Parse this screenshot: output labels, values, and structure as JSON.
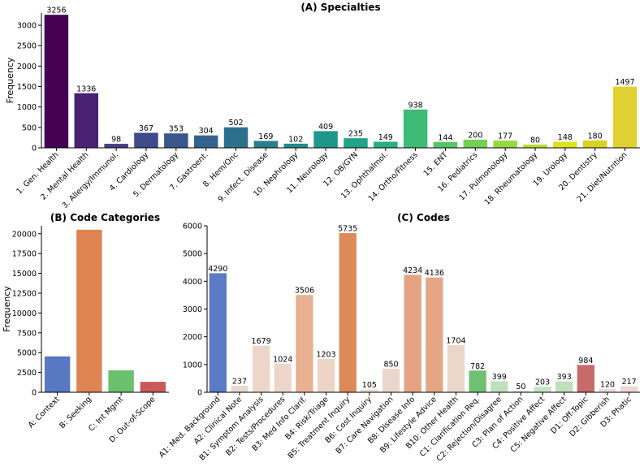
{
  "chart_data": [
    {
      "id": "A",
      "type": "bar",
      "title": "(A) Specialties",
      "xlabel": "",
      "ylabel": "Frequency",
      "ylim": [
        0,
        3300
      ],
      "yticks": [
        0,
        500,
        1000,
        1500,
        2000,
        2500,
        3000
      ],
      "categories": [
        "1. Gen. Health",
        "2. Mental Health",
        "3. Allergy/Immunol.",
        "4. Cardiology",
        "5. Dermatology",
        "7. Gastroent.",
        "8. Hem/Onc",
        "9. Infect. Disease",
        "10. Nephrology",
        "11. Neurology",
        "12. OB/GYN",
        "13. Ophthalmol.",
        "14. Ortho/Fitness",
        "15. ENT",
        "16. Pediatrics",
        "17. Pulmonology",
        "18. Rheumatology",
        "19. Urology",
        "20. Dentistry",
        "21. Diet/Nutrition"
      ],
      "values": [
        3256,
        1336,
        98,
        367,
        353,
        304,
        502,
        169,
        102,
        409,
        235,
        149,
        938,
        144,
        200,
        177,
        80,
        148,
        180,
        1497
      ],
      "labels": [
        "3256",
        "1336",
        "98",
        "367",
        "353",
        "304",
        "502",
        "169",
        "102",
        "409",
        "235",
        "149",
        "938",
        "144",
        "200",
        "177",
        "80",
        "148",
        "180",
        "1497"
      ],
      "colors": [
        "#440154",
        "#482173",
        "#433e85",
        "#3e4a89",
        "#38588c",
        "#33638d",
        "#2d708e",
        "#287d8e",
        "#238a8d",
        "#1f968b",
        "#20a386",
        "#29af7f",
        "#3cbb75",
        "#55c667",
        "#73d055",
        "#95d840",
        "#b8de29",
        "#dce319",
        "#d8d21f",
        "#e0d132"
      ]
    },
    {
      "id": "B",
      "type": "bar",
      "title": "(B) Code Categories",
      "xlabel": "",
      "ylabel": "Frequency",
      "ylim": [
        0,
        21000
      ],
      "yticks": [
        0,
        2500,
        5000,
        7500,
        10000,
        12500,
        15000,
        17500,
        20000
      ],
      "categories": [
        "A: Context",
        "B: Seeking",
        "C: Int Mgmt",
        "D: Out-of-Scope"
      ],
      "values": [
        4527,
        20500,
        2770,
        1320
      ],
      "colors": [
        "#5878c4",
        "#dd8452",
        "#6cbf6c",
        "#c85a5a"
      ]
    },
    {
      "id": "C",
      "type": "bar",
      "title": "(C) Codes",
      "xlabel": "",
      "ylabel": "",
      "ylim": [
        0,
        6000
      ],
      "yticks": [
        0,
        1000,
        2000,
        3000,
        4000,
        5000,
        6000
      ],
      "categories": [
        "A1: Med. Background",
        "A2: Clinical Note",
        "B1: Symptom Analysis",
        "B2: Tests/Procedures",
        "B3: Med Info Clarif.",
        "B4: Risk/Triage",
        "B5: Treatment Inquiry",
        "B6: Cost Inquiry",
        "B7: Care Navigation",
        "B8: Disease Info",
        "B9: Lifestyle Advice",
        "B10: Other Health",
        "C1: Clarification Req.",
        "C2: Rejection/Disagree",
        "C3: Plan of Action",
        "C4: Positive Affect",
        "C5: Negative Affect",
        "D1: Off-Topic",
        "D2: Gibberish",
        "D3: Phatic"
      ],
      "values": [
        4290,
        237,
        1679,
        1024,
        3506,
        1203,
        5735,
        105,
        850,
        4234,
        4136,
        1704,
        782,
        399,
        50,
        203,
        393,
        984,
        120,
        217
      ],
      "labels": [
        "4290",
        "237",
        "1679",
        "1024",
        "3506",
        "1203",
        "5735",
        "105",
        "850",
        "4234",
        "4136",
        "1704",
        "782",
        "399",
        "50",
        "203",
        "393",
        "984",
        "120",
        "217"
      ],
      "colors": [
        "#5a7bc6",
        "#e9d8cf",
        "#ecd6ca",
        "#ecd6ca",
        "#e8b192",
        "#ecd4c6",
        "#dc8a58",
        "#ecdcd3",
        "#ead7cb",
        "#e5a383",
        "#e5a685",
        "#ecd6ca",
        "#6fc070",
        "#bfe0bc",
        "#cfe8cc",
        "#c6e4c3",
        "#bfe0bc",
        "#c8696a",
        "#eed9d9",
        "#ecd6d6"
      ]
    }
  ]
}
